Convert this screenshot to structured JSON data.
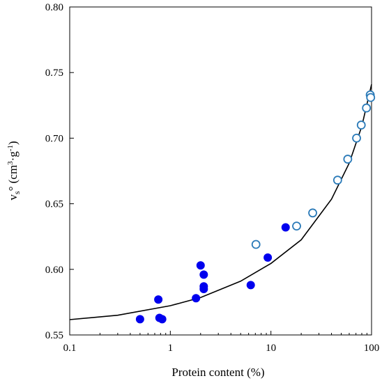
{
  "chart_data": {
    "type": "scatter",
    "title": "",
    "xlabel": "Protein content (%)",
    "ylabel": {
      "base": "v",
      "sub": "s",
      "after_sub": "° (cm",
      "sup1": "3",
      "mid": "·g",
      "sup2": "-1",
      "end": ")"
    },
    "x_scale": "log",
    "xlim": [
      0.1,
      100
    ],
    "ylim": [
      0.55,
      0.8
    ],
    "x_ticks": [
      0.1,
      1,
      10,
      100
    ],
    "x_tick_labels": [
      "0.1",
      "1",
      "10",
      "100"
    ],
    "y_ticks": [
      0.55,
      0.6,
      0.65,
      0.7,
      0.75,
      0.8
    ],
    "y_tick_labels": [
      "0.55",
      "0.60",
      "0.65",
      "0.70",
      "0.75",
      "0.80"
    ],
    "grid": false,
    "legend": "none",
    "colors": {
      "filled": "#0000ee",
      "open_edge": "#2a7ab8",
      "open_fill": "#ffffff",
      "fit_line": "#000000"
    },
    "series": [
      {
        "marker": "filled-circle",
        "points": [
          {
            "x": 0.5,
            "y": 0.562
          },
          {
            "x": 0.76,
            "y": 0.577
          },
          {
            "x": 0.78,
            "y": 0.563
          },
          {
            "x": 0.83,
            "y": 0.562
          },
          {
            "x": 1.8,
            "y": 0.578
          },
          {
            "x": 2.0,
            "y": 0.603
          },
          {
            "x": 2.15,
            "y": 0.596
          },
          {
            "x": 2.15,
            "y": 0.587
          },
          {
            "x": 2.15,
            "y": 0.585
          },
          {
            "x": 6.3,
            "y": 0.588
          },
          {
            "x": 9.3,
            "y": 0.609
          },
          {
            "x": 14,
            "y": 0.632
          }
        ]
      },
      {
        "marker": "open-circle",
        "points": [
          {
            "x": 7.1,
            "y": 0.619
          },
          {
            "x": 18,
            "y": 0.633
          },
          {
            "x": 26,
            "y": 0.643
          },
          {
            "x": 46,
            "y": 0.668
          },
          {
            "x": 58,
            "y": 0.684
          },
          {
            "x": 71,
            "y": 0.7
          },
          {
            "x": 79,
            "y": 0.71
          },
          {
            "x": 89,
            "y": 0.723
          },
          {
            "x": 97,
            "y": 0.733
          },
          {
            "x": 98,
            "y": 0.731
          }
        ]
      },
      {
        "marker": "line",
        "points": [
          {
            "x": 0.1,
            "y": 0.5617
          },
          {
            "x": 0.3,
            "y": 0.565
          },
          {
            "x": 1,
            "y": 0.5723
          },
          {
            "x": 2,
            "y": 0.5785
          },
          {
            "x": 5,
            "y": 0.591
          },
          {
            "x": 10,
            "y": 0.6045
          },
          {
            "x": 20,
            "y": 0.6225
          },
          {
            "x": 40,
            "y": 0.6535
          },
          {
            "x": 60,
            "y": 0.681
          },
          {
            "x": 80,
            "y": 0.709
          },
          {
            "x": 100,
            "y": 0.741
          }
        ]
      }
    ]
  }
}
